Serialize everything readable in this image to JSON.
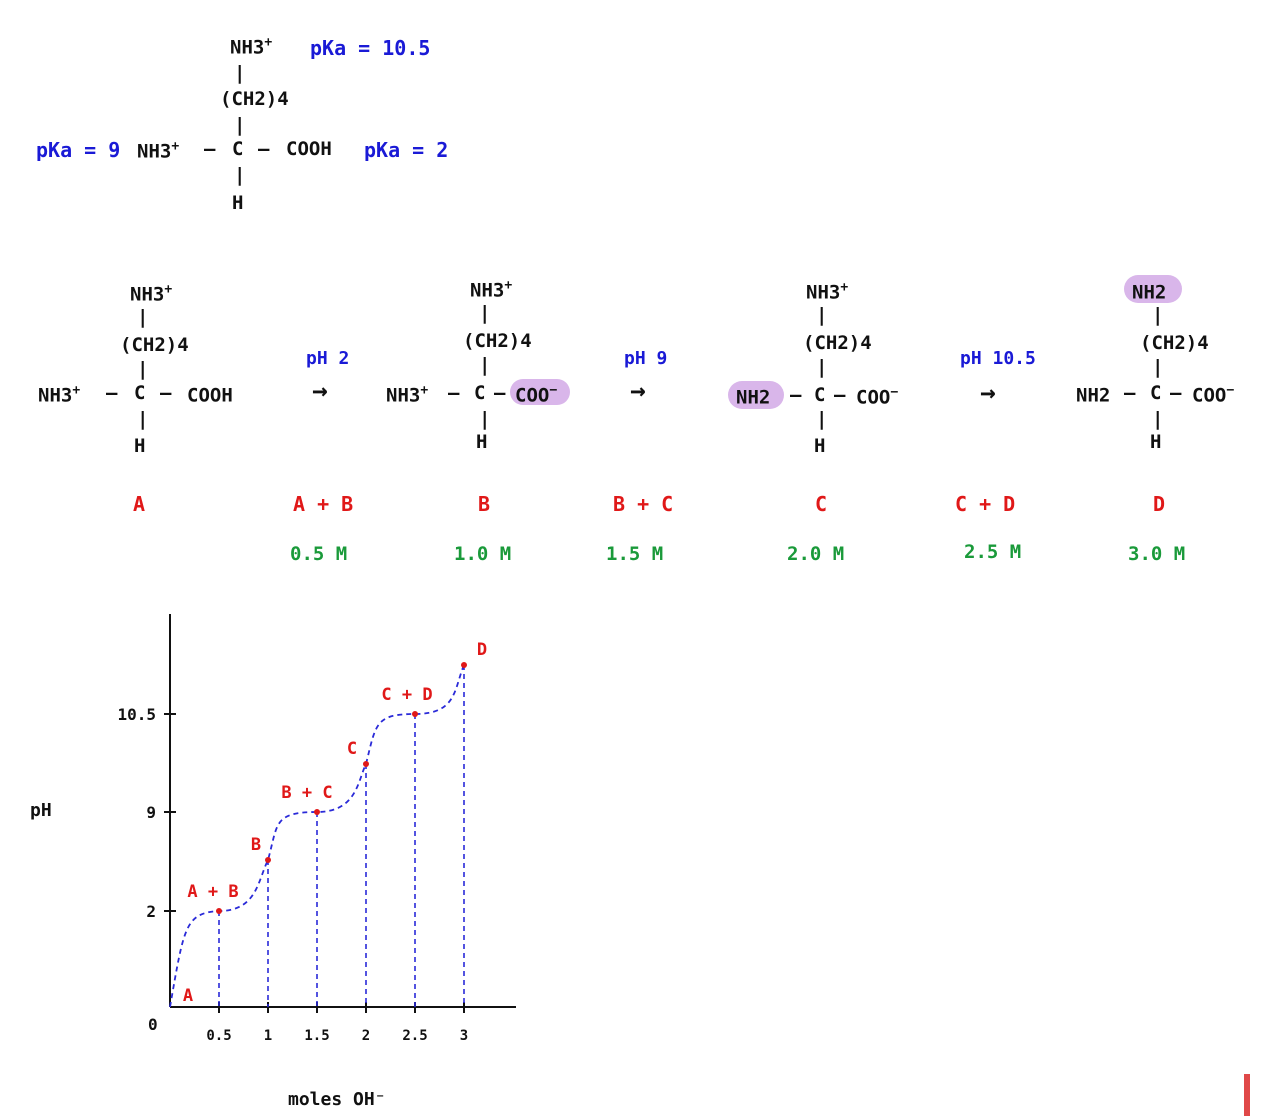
{
  "lysine": {
    "side_amine": "NH3",
    "side_charge": "+",
    "side_pka": "pKa = 10.5",
    "chain": "(CH2)4",
    "alpha_pka": "pKa = 9",
    "alpha_amine": "NH3",
    "alpha_charge": "+",
    "carbon": "C",
    "carboxyl": "COOH",
    "carboxyl_pka": "pKa = 2",
    "hydrogen": "H",
    "dash": "–",
    "bond": "|"
  },
  "species": [
    {
      "label": "A",
      "top": "NH3",
      "top_charge": "+",
      "chain": "(CH2)4",
      "left": "NH3",
      "left_charge": "+",
      "carbon": "C",
      "right": "COOH",
      "right_charge": "",
      "bottom": "H"
    },
    {
      "label": "B",
      "top": "NH3",
      "top_charge": "+",
      "chain": "(CH2)4",
      "left": "NH3",
      "left_charge": "+",
      "carbon": "C",
      "right": "COO",
      "right_charge": "−",
      "bottom": "H"
    },
    {
      "label": "C",
      "top": "NH3",
      "top_charge": "+",
      "chain": "(CH2)4",
      "left": "NH2",
      "left_charge": "",
      "carbon": "C",
      "right": "COO",
      "right_charge": "−",
      "bottom": "H"
    },
    {
      "label": "D",
      "top": "NH2",
      "top_charge": "",
      "chain": "(CH2)4",
      "left": "NH2",
      "left_charge": "",
      "carbon": "C",
      "right": "COO",
      "right_charge": "−",
      "bottom": "H"
    }
  ],
  "arrows": [
    {
      "ph": "pH 2",
      "symbol": "→",
      "mix": "A + B",
      "conc": "0.5 M"
    },
    {
      "ph": "pH 9",
      "symbol": "→",
      "mix": "B + C",
      "conc": "1.5 M"
    },
    {
      "ph": "pH 10.5",
      "symbol": "→",
      "mix": "C + D",
      "conc": "2.5 M"
    }
  ],
  "species_conc": [
    "",
    "1.0 M",
    "2.0 M",
    "3.0 M"
  ],
  "colors": {
    "blue": "#1a1ad6",
    "red": "#e01818",
    "green": "#1a9a3a",
    "highlight": "#d9b6ea",
    "curve": "#2a2ad8"
  },
  "chart_data": {
    "type": "line",
    "xlabel": "moles OH⁻",
    "ylabel": "pH",
    "x_ticks": [
      {
        "value": 0.5,
        "label": "0.5"
      },
      {
        "value": 1,
        "label": "1"
      },
      {
        "value": 1.5,
        "label": "1.5"
      },
      {
        "value": 2,
        "label": "2"
      },
      {
        "value": 2.5,
        "label": "2.5"
      },
      {
        "value": 3,
        "label": "3"
      }
    ],
    "y_ticks": [
      {
        "value": 2,
        "label": "2"
      },
      {
        "value": 9,
        "label": "9"
      },
      {
        "value": 10.5,
        "label": "10.5"
      }
    ],
    "origin_label": "0",
    "points": [
      {
        "x": 0,
        "y": 0,
        "label": "A"
      },
      {
        "x": 0.5,
        "y": 2,
        "label": "A + B"
      },
      {
        "x": 1,
        "y": 5.5,
        "label": "B"
      },
      {
        "x": 1.5,
        "y": 9,
        "label": "B + C"
      },
      {
        "x": 2,
        "y": 9.75,
        "label": "C"
      },
      {
        "x": 2.5,
        "y": 10.5,
        "label": "C + D"
      },
      {
        "x": 3,
        "y": 11.25,
        "label": "D"
      }
    ]
  }
}
